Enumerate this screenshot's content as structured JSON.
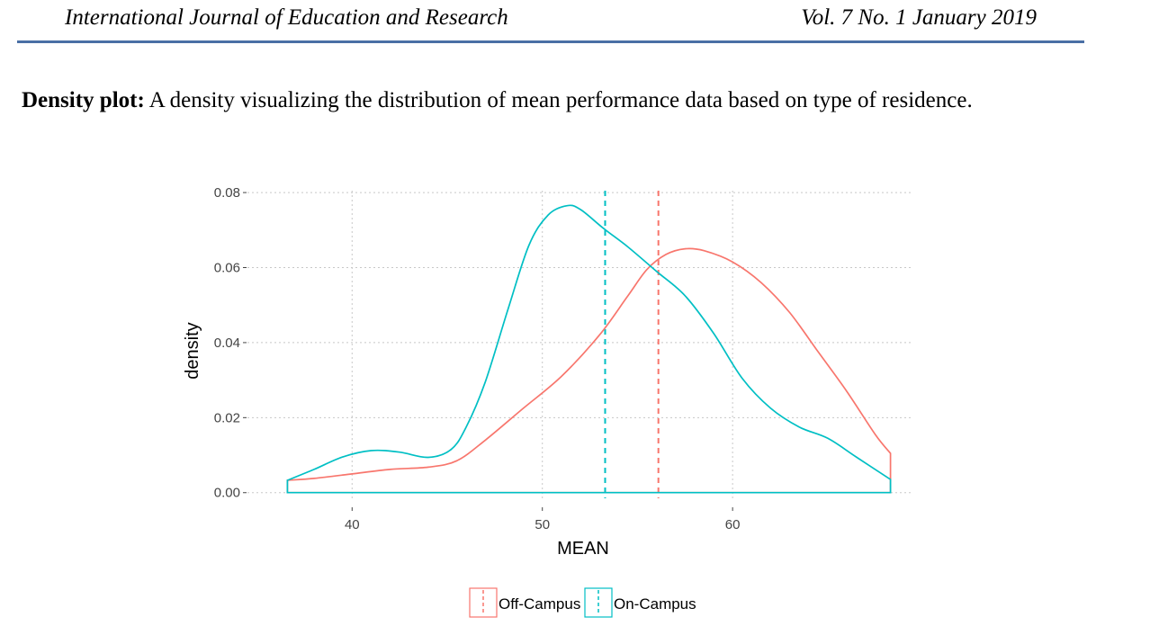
{
  "header": {
    "journal": "International Journal of Education and Research",
    "issue": "Vol. 7 No. 1 January 2019"
  },
  "caption": {
    "lead": "Density plot:",
    "text": "A density visualizing the distribution of mean performance data based on type of residence."
  },
  "chart_data": {
    "type": "area",
    "title": "",
    "xlabel": "MEAN",
    "ylabel": "density",
    "xlim": [
      34.5,
      69.5
    ],
    "ylim": [
      -0.0015,
      0.0805
    ],
    "x_ticks": [
      40,
      50,
      60
    ],
    "y_ticks": [
      0.0,
      0.02,
      0.04,
      0.06,
      0.08
    ],
    "x_tick_labels": [
      "40",
      "50",
      "60"
    ],
    "y_tick_labels": [
      "0.00",
      "0.02",
      "0.04",
      "0.06",
      "0.08"
    ],
    "grid": true,
    "legend_position": "bottom",
    "series": [
      {
        "name": "Off-Campus",
        "color": "#F8766D",
        "mean": 56.1,
        "points": [
          [
            36.6,
            0.0033
          ],
          [
            38,
            0.0038
          ],
          [
            40,
            0.005
          ],
          [
            42,
            0.0062
          ],
          [
            44,
            0.0068
          ],
          [
            45.5,
            0.0085
          ],
          [
            47,
            0.014
          ],
          [
            49,
            0.0225
          ],
          [
            51,
            0.031
          ],
          [
            53,
            0.042
          ],
          [
            54.5,
            0.0525
          ],
          [
            55.5,
            0.0595
          ],
          [
            56.5,
            0.0635
          ],
          [
            57.5,
            0.065
          ],
          [
            58.5,
            0.0645
          ],
          [
            60,
            0.0615
          ],
          [
            61.5,
            0.056
          ],
          [
            63,
            0.048
          ],
          [
            64.5,
            0.0375
          ],
          [
            66,
            0.027
          ],
          [
            67.5,
            0.0155
          ],
          [
            68.3,
            0.0105
          ]
        ]
      },
      {
        "name": "On-Campus",
        "color": "#00BFC4",
        "mean": 53.3,
        "points": [
          [
            36.6,
            0.0033
          ],
          [
            38,
            0.0062
          ],
          [
            39.5,
            0.0095
          ],
          [
            41,
            0.0112
          ],
          [
            42.5,
            0.0108
          ],
          [
            44,
            0.0094
          ],
          [
            45.2,
            0.0115
          ],
          [
            46,
            0.0175
          ],
          [
            47,
            0.0295
          ],
          [
            48.2,
            0.049
          ],
          [
            49.3,
            0.066
          ],
          [
            50.3,
            0.074
          ],
          [
            51.3,
            0.0765
          ],
          [
            52,
            0.0755
          ],
          [
            53.2,
            0.0705
          ],
          [
            54.5,
            0.0655
          ],
          [
            56,
            0.059
          ],
          [
            57.5,
            0.0525
          ],
          [
            59,
            0.0425
          ],
          [
            60.5,
            0.0305
          ],
          [
            62,
            0.0225
          ],
          [
            63.5,
            0.0175
          ],
          [
            65,
            0.0145
          ],
          [
            66.5,
            0.0095
          ],
          [
            68.3,
            0.0035
          ]
        ]
      }
    ]
  }
}
